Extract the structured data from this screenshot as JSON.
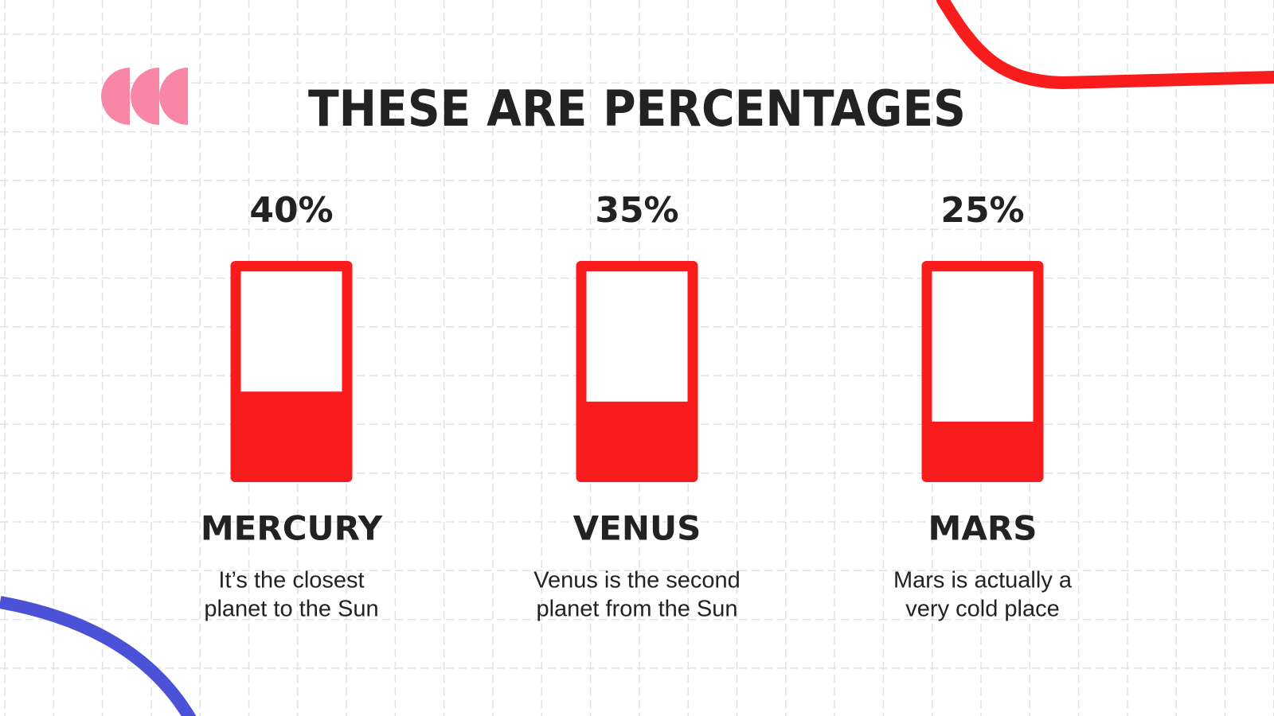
{
  "chart_data": {
    "type": "bar",
    "title": "THESE ARE PERCENTAGES",
    "categories": [
      "MERCURY",
      "VENUS",
      "MARS"
    ],
    "values": [
      40,
      35,
      25
    ],
    "value_labels": [
      "40%",
      "35%",
      "25%"
    ],
    "descriptions": [
      [
        "It’s the closest",
        "planet to the Sun"
      ],
      [
        "Venus is the second",
        "planet from the Sun"
      ],
      [
        "Mars is actually a",
        "very cold place"
      ]
    ],
    "color": "#f91c1c",
    "ylim": [
      0,
      100
    ]
  }
}
